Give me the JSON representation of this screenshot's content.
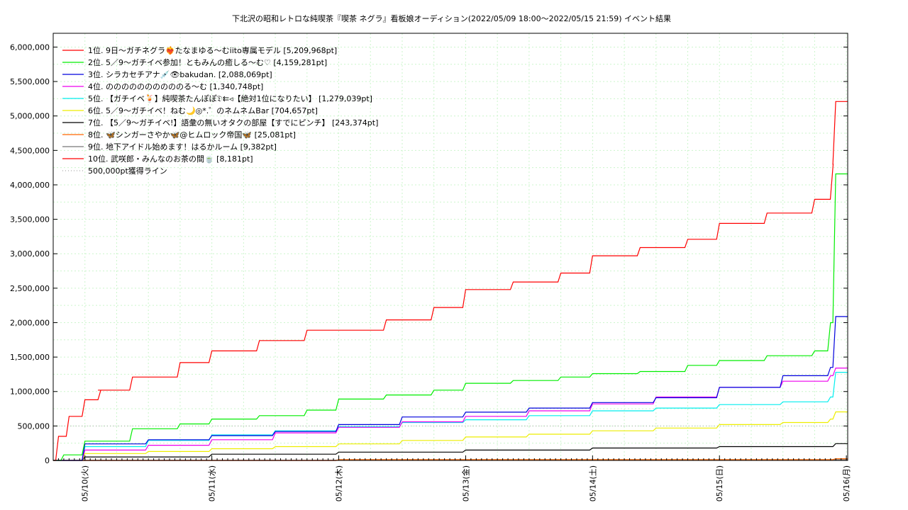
{
  "chart_data": {
    "type": "line",
    "title": "下北沢の昭和レトロな純喫茶『喫茶 ネグラ』看板娘オーディション(2022/05/09 18:00〜2022/05/15 21:59)",
    "subtitle": "イベント結果",
    "xlabel": "",
    "ylabel": "",
    "xlim": [
      "2022-05-09 18:00",
      "2022-05-16 00:15"
    ],
    "ylim": [
      0,
      6200000
    ],
    "x_ticks": [
      "05/10(火)",
      "05/11(水)",
      "05/12(木)",
      "05/13(金)",
      "05/14(土)",
      "05/15(日)",
      "05/16(月)"
    ],
    "y_ticks": [
      "0",
      "500,000",
      "1,000,000",
      "1,500,000",
      "2,000,000",
      "2,500,000",
      "3,000,000",
      "3,500,000",
      "4,000,000",
      "4,500,000",
      "5,000,000",
      "5,500,000",
      "6,000,000"
    ],
    "grid": true,
    "legend_position": "top-left",
    "series": [
      {
        "name": "1位. 9日〜ガチネグラ❤️‍🔥たなまゆる〜むiito専属モデル [5,209,968pt]",
        "color": "#ff0000",
        "x": [
          "2022-05-09 18:00",
          "2022-05-09 19:00",
          "2022-05-09 21:00",
          "2022-05-10 00:00",
          "2022-05-10 01:00",
          "2022-05-10 03:00",
          "2022-05-10 03:00",
          "2022-05-10 09:00",
          "2022-05-10 18:00",
          "2022-05-11 00:00",
          "2022-05-11 09:00",
          "2022-05-11 18:00",
          "2022-05-12 00:00",
          "2022-05-12 09:00",
          "2022-05-12 18:00",
          "2022-05-13 00:00",
          "2022-05-13 09:00",
          "2022-05-13 18:00",
          "2022-05-14 00:00",
          "2022-05-14 09:00",
          "2022-05-14 18:00",
          "2022-05-15 00:00",
          "2022-05-15 09:00",
          "2022-05-15 18:00",
          "2022-05-15 21:30",
          "2022-05-15 21:59"
        ],
        "y": [
          0,
          350000,
          640000,
          880000,
          880000,
          1020000,
          1020000,
          1210000,
          1420000,
          1590000,
          1740000,
          1890000,
          1890000,
          2040000,
          2220000,
          2480000,
          2590000,
          2720000,
          2970000,
          3090000,
          3210000,
          3440000,
          3590000,
          3790000,
          4300000,
          5209968
        ]
      },
      {
        "name": "2位. 5／9〜ガチイベ参加！ともみんの癒しる〜む♡ [4,159,281pt]",
        "color": "#00ee00",
        "x": [
          "2022-05-09 18:00",
          "2022-05-09 20:00",
          "2022-05-10 00:00",
          "2022-05-10 09:00",
          "2022-05-10 18:00",
          "2022-05-11 00:00",
          "2022-05-11 09:00",
          "2022-05-11 18:00",
          "2022-05-12 00:00",
          "2022-05-12 09:00",
          "2022-05-12 18:00",
          "2022-05-13 00:00",
          "2022-05-13 09:00",
          "2022-05-13 18:00",
          "2022-05-14 00:00",
          "2022-05-14 09:00",
          "2022-05-14 18:00",
          "2022-05-15 00:00",
          "2022-05-15 09:00",
          "2022-05-15 18:00",
          "2022-05-15 21:00",
          "2022-05-15 21:59"
        ],
        "y": [
          0,
          80000,
          280000,
          460000,
          530000,
          600000,
          650000,
          730000,
          890000,
          950000,
          1020000,
          1120000,
          1160000,
          1210000,
          1260000,
          1290000,
          1380000,
          1450000,
          1520000,
          1590000,
          2000000,
          4159281
        ]
      },
      {
        "name": "3位. シラカセチアナ💉👁bakudan. [2,088,069pt]",
        "color": "#0000dd",
        "x": [
          "2022-05-09 18:00",
          "2022-05-10 00:00",
          "2022-05-10 12:00",
          "2022-05-11 00:00",
          "2022-05-11 12:00",
          "2022-05-12 00:00",
          "2022-05-12 12:00",
          "2022-05-13 00:00",
          "2022-05-13 12:00",
          "2022-05-14 00:00",
          "2022-05-14 12:00",
          "2022-05-15 00:00",
          "2022-05-15 12:00",
          "2022-05-15 21:00",
          "2022-05-15 21:59"
        ],
        "y": [
          0,
          240000,
          300000,
          360000,
          420000,
          520000,
          630000,
          700000,
          760000,
          840000,
          910000,
          1060000,
          1230000,
          1350000,
          2088069
        ]
      },
      {
        "name": "4位. ののののののののののる〜む [1,340,748pt]",
        "color": "#ee00ee",
        "x": [
          "2022-05-09 18:00",
          "2022-05-10 00:00",
          "2022-05-10 12:00",
          "2022-05-11 00:00",
          "2022-05-11 12:00",
          "2022-05-12 00:00",
          "2022-05-12 12:00",
          "2022-05-13 00:00",
          "2022-05-13 12:00",
          "2022-05-14 00:00",
          "2022-05-14 12:00",
          "2022-05-15 00:00",
          "2022-05-15 12:00",
          "2022-05-15 21:00",
          "2022-05-15 21:59"
        ],
        "y": [
          0,
          150000,
          220000,
          300000,
          400000,
          480000,
          560000,
          640000,
          720000,
          820000,
          920000,
          1060000,
          1150000,
          1230000,
          1340748
        ]
      },
      {
        "name": "5位. 【ガチイベ🍹】純喫茶たんぽぽ𝔇⇇◃【絶対1位になりたい】 [1,279,039pt]",
        "color": "#00eeee",
        "x": [
          "2022-05-09 18:00",
          "2022-05-10 00:00",
          "2022-05-10 12:00",
          "2022-05-11 00:00",
          "2022-05-11 12:00",
          "2022-05-12 00:00",
          "2022-05-12 12:00",
          "2022-05-13 00:00",
          "2022-05-13 12:00",
          "2022-05-14 00:00",
          "2022-05-14 12:00",
          "2022-05-15 00:00",
          "2022-05-15 12:00",
          "2022-05-15 21:00",
          "2022-05-15 21:59"
        ],
        "y": [
          0,
          200000,
          290000,
          370000,
          430000,
          490000,
          550000,
          590000,
          650000,
          720000,
          760000,
          810000,
          850000,
          920000,
          1279039
        ]
      },
      {
        "name": "6位. 5／9〜ガチイベ！ねむ🌙◎*.゜のネムネムBar [704,657pt]",
        "color": "#eeee00",
        "x": [
          "2022-05-09 18:00",
          "2022-05-10 00:00",
          "2022-05-10 12:00",
          "2022-05-11 00:00",
          "2022-05-11 12:00",
          "2022-05-12 00:00",
          "2022-05-12 12:00",
          "2022-05-13 00:00",
          "2022-05-13 12:00",
          "2022-05-14 00:00",
          "2022-05-14 12:00",
          "2022-05-15 00:00",
          "2022-05-15 12:00",
          "2022-05-15 21:00",
          "2022-05-15 21:59"
        ],
        "y": [
          0,
          100000,
          130000,
          170000,
          200000,
          240000,
          290000,
          340000,
          380000,
          430000,
          470000,
          520000,
          550000,
          600000,
          704657
        ]
      },
      {
        "name": "7位. 【5／9〜ガチイベ!】語彙の無いオタクの部屋【すでにピンチ】 [243,374pt]",
        "color": "#000000",
        "x": [
          "2022-05-09 18:00",
          "2022-05-10 00:00",
          "2022-05-11 00:00",
          "2022-05-12 00:00",
          "2022-05-13 00:00",
          "2022-05-14 00:00",
          "2022-05-15 00:00",
          "2022-05-15 21:59"
        ],
        "y": [
          0,
          50000,
          90000,
          120000,
          150000,
          180000,
          200000,
          243374
        ]
      },
      {
        "name": "8位. 🦋シンガーさやか🦋@ヒムロック帝国🦋 [25,081pt]",
        "color": "#ff6600",
        "x": [
          "2022-05-09 18:00",
          "2022-05-12 00:00",
          "2022-05-15 21:59"
        ],
        "y": [
          0,
          12000,
          25081
        ]
      },
      {
        "name": "9位. 地下アイドル始めます！はるかルーム [9,382pt]",
        "color": "#777777",
        "x": [
          "2022-05-09 18:00",
          "2022-05-12 00:00",
          "2022-05-15 21:59"
        ],
        "y": [
          0,
          5000,
          9382
        ]
      },
      {
        "name": "10位. 武咲郎・みんなのお茶の間🍵 [8,181pt]",
        "color": "#ff0000",
        "x": [
          "2022-05-09 18:00",
          "2022-05-12 00:00",
          "2022-05-15 21:59"
        ],
        "y": [
          0,
          4000,
          8181
        ]
      }
    ],
    "reference_line": {
      "name": "500,000pt獲得ライン",
      "value": 500000,
      "color": "#aaaaaa"
    }
  }
}
